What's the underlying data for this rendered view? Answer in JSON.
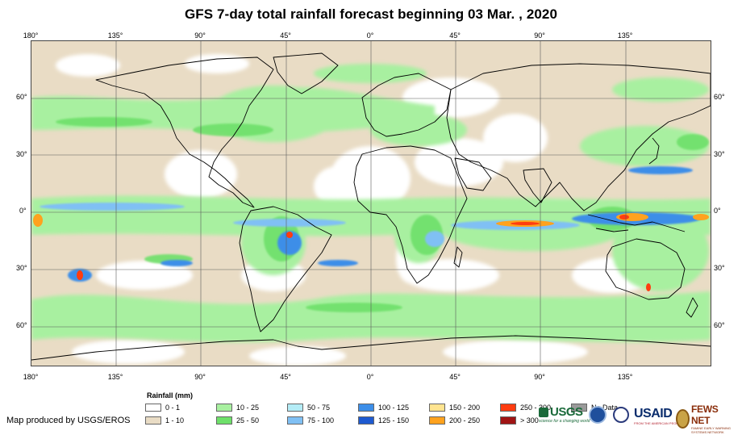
{
  "title": "GFS 7-day total rainfall forecast beginning 03 Mar. , 2020",
  "map": {
    "lon_range": [
      -180,
      180
    ],
    "lat_range": [
      -80,
      90
    ],
    "longitude_ticks": [
      "180°",
      "135°",
      "90°",
      "45°",
      "0°",
      "45°",
      "90°",
      "135°"
    ],
    "latitude_ticks_left": [
      "60°",
      "30°",
      "0°",
      "30°",
      "60°"
    ],
    "latitude_ticks_right": [
      "60°",
      "30°",
      "0°",
      "30°",
      "60°"
    ],
    "colors": {
      "land_outline": "#000000",
      "graticule": "#5a5a5a",
      "background_rain": "#e9dcc5"
    }
  },
  "legend": {
    "title": "Rainfall (mm)",
    "items": [
      {
        "label": "0 - 1",
        "color": "#ffffff"
      },
      {
        "label": "1 - 10",
        "color": "#e9dcc5"
      },
      {
        "label": "10 - 25",
        "color": "#a8f0a0"
      },
      {
        "label": "25 - 50",
        "color": "#6ee06a"
      },
      {
        "label": "50 - 75",
        "color": "#b4ecf6"
      },
      {
        "label": "75 - 100",
        "color": "#80c0f4"
      },
      {
        "label": "100 - 125",
        "color": "#3c8ee8"
      },
      {
        "label": "125 - 150",
        "color": "#1e5ad0"
      },
      {
        "label": "150 - 200",
        "color": "#ffe490"
      },
      {
        "label": "200 - 250",
        "color": "#ffa21e"
      },
      {
        "label": "250 - 300",
        "color": "#ff3c10"
      },
      {
        "label": "> 300",
        "color": "#a01414"
      },
      {
        "label": "No Data",
        "color": "#9a9a9a"
      }
    ]
  },
  "credit": "Map produced by USGS/EROS",
  "logos": {
    "usgs": "USGS",
    "usgs_tagline": "science for a changing world",
    "noaa": "noaa-logo",
    "seal": "department-seal-logo",
    "usaid": "USAID",
    "usaid_tagline": "FROM THE AMERICAN PEOPLE",
    "fews": "FEWS NET",
    "fews_tagline": "FAMINE EARLY WARNING SYSTEMS NETWORK"
  }
}
